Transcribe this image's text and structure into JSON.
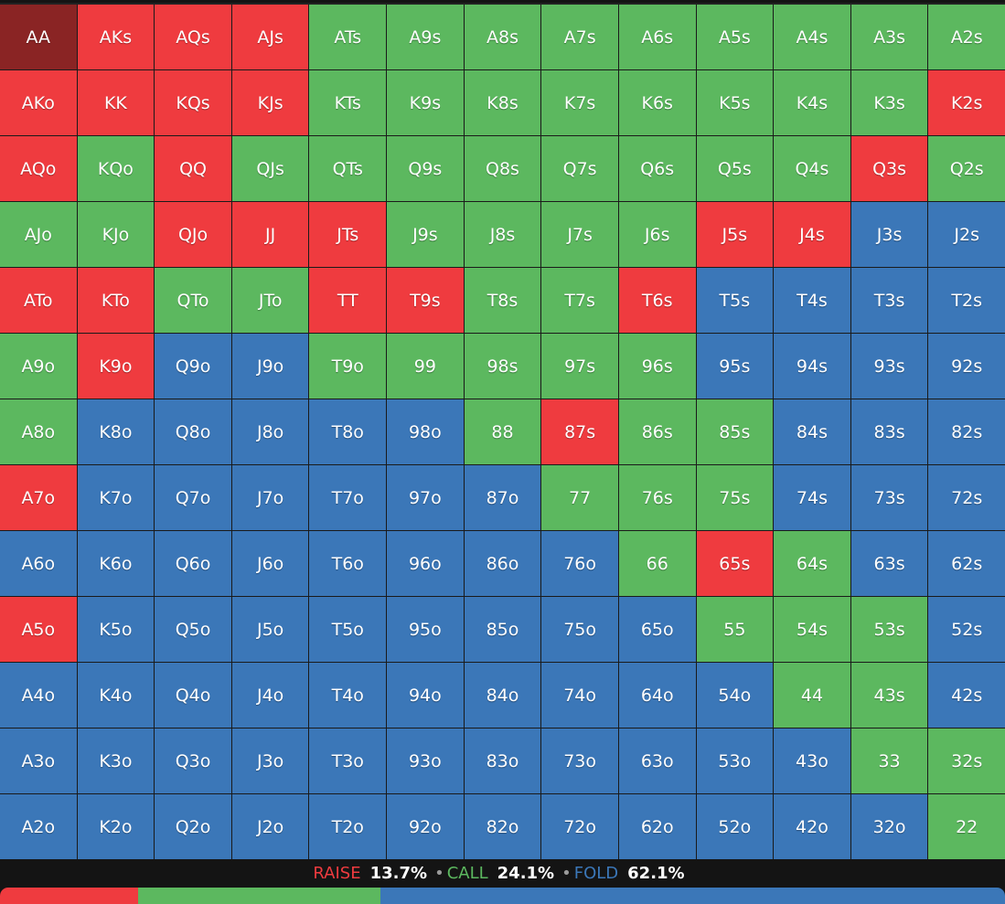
{
  "colors": {
    "raise": "#ef3b3f",
    "call": "#5cb85f",
    "fold": "#3b77b8",
    "selected": "#8a2424",
    "background": "#141414"
  },
  "grid": {
    "rows": [
      [
        [
          "AA",
          "sel"
        ],
        [
          "AKs",
          "R"
        ],
        [
          "AQs",
          "R"
        ],
        [
          "AJs",
          "R"
        ],
        [
          "ATs",
          "C"
        ],
        [
          "A9s",
          "C"
        ],
        [
          "A8s",
          "C"
        ],
        [
          "A7s",
          "C"
        ],
        [
          "A6s",
          "C"
        ],
        [
          "A5s",
          "C"
        ],
        [
          "A4s",
          "C"
        ],
        [
          "A3s",
          "C"
        ],
        [
          "A2s",
          "C"
        ]
      ],
      [
        [
          "AKo",
          "R"
        ],
        [
          "KK",
          "R"
        ],
        [
          "KQs",
          "R"
        ],
        [
          "KJs",
          "R"
        ],
        [
          "KTs",
          "C"
        ],
        [
          "K9s",
          "C"
        ],
        [
          "K8s",
          "C"
        ],
        [
          "K7s",
          "C"
        ],
        [
          "K6s",
          "C"
        ],
        [
          "K5s",
          "C"
        ],
        [
          "K4s",
          "C"
        ],
        [
          "K3s",
          "C"
        ],
        [
          "K2s",
          "R"
        ]
      ],
      [
        [
          "AQo",
          "R"
        ],
        [
          "KQo",
          "C"
        ],
        [
          "QQ",
          "R"
        ],
        [
          "QJs",
          "C"
        ],
        [
          "QTs",
          "C"
        ],
        [
          "Q9s",
          "C"
        ],
        [
          "Q8s",
          "C"
        ],
        [
          "Q7s",
          "C"
        ],
        [
          "Q6s",
          "C"
        ],
        [
          "Q5s",
          "C"
        ],
        [
          "Q4s",
          "C"
        ],
        [
          "Q3s",
          "R"
        ],
        [
          "Q2s",
          "C"
        ]
      ],
      [
        [
          "AJo",
          "C"
        ],
        [
          "KJo",
          "C"
        ],
        [
          "QJo",
          "R"
        ],
        [
          "JJ",
          "R"
        ],
        [
          "JTs",
          "R"
        ],
        [
          "J9s",
          "C"
        ],
        [
          "J8s",
          "C"
        ],
        [
          "J7s",
          "C"
        ],
        [
          "J6s",
          "C"
        ],
        [
          "J5s",
          "R"
        ],
        [
          "J4s",
          "R"
        ],
        [
          "J3s",
          "F"
        ],
        [
          "J2s",
          "F"
        ]
      ],
      [
        [
          "ATo",
          "R"
        ],
        [
          "KTo",
          "R"
        ],
        [
          "QTo",
          "C"
        ],
        [
          "JTo",
          "C"
        ],
        [
          "TT",
          "R"
        ],
        [
          "T9s",
          "R"
        ],
        [
          "T8s",
          "C"
        ],
        [
          "T7s",
          "C"
        ],
        [
          "T6s",
          "R"
        ],
        [
          "T5s",
          "F"
        ],
        [
          "T4s",
          "F"
        ],
        [
          "T3s",
          "F"
        ],
        [
          "T2s",
          "F"
        ]
      ],
      [
        [
          "A9o",
          "C"
        ],
        [
          "K9o",
          "R"
        ],
        [
          "Q9o",
          "F"
        ],
        [
          "J9o",
          "F"
        ],
        [
          "T9o",
          "C"
        ],
        [
          "99",
          "C"
        ],
        [
          "98s",
          "C"
        ],
        [
          "97s",
          "C"
        ],
        [
          "96s",
          "C"
        ],
        [
          "95s",
          "F"
        ],
        [
          "94s",
          "F"
        ],
        [
          "93s",
          "F"
        ],
        [
          "92s",
          "F"
        ]
      ],
      [
        [
          "A8o",
          "C"
        ],
        [
          "K8o",
          "F"
        ],
        [
          "Q8o",
          "F"
        ],
        [
          "J8o",
          "F"
        ],
        [
          "T8o",
          "F"
        ],
        [
          "98o",
          "F"
        ],
        [
          "88",
          "C"
        ],
        [
          "87s",
          "R"
        ],
        [
          "86s",
          "C"
        ],
        [
          "85s",
          "C"
        ],
        [
          "84s",
          "F"
        ],
        [
          "83s",
          "F"
        ],
        [
          "82s",
          "F"
        ]
      ],
      [
        [
          "A7o",
          "R"
        ],
        [
          "K7o",
          "F"
        ],
        [
          "Q7o",
          "F"
        ],
        [
          "J7o",
          "F"
        ],
        [
          "T7o",
          "F"
        ],
        [
          "97o",
          "F"
        ],
        [
          "87o",
          "F"
        ],
        [
          "77",
          "C"
        ],
        [
          "76s",
          "C"
        ],
        [
          "75s",
          "C"
        ],
        [
          "74s",
          "F"
        ],
        [
          "73s",
          "F"
        ],
        [
          "72s",
          "F"
        ]
      ],
      [
        [
          "A6o",
          "F"
        ],
        [
          "K6o",
          "F"
        ],
        [
          "Q6o",
          "F"
        ],
        [
          "J6o",
          "F"
        ],
        [
          "T6o",
          "F"
        ],
        [
          "96o",
          "F"
        ],
        [
          "86o",
          "F"
        ],
        [
          "76o",
          "F"
        ],
        [
          "66",
          "C"
        ],
        [
          "65s",
          "R"
        ],
        [
          "64s",
          "C"
        ],
        [
          "63s",
          "F"
        ],
        [
          "62s",
          "F"
        ]
      ],
      [
        [
          "A5o",
          "R"
        ],
        [
          "K5o",
          "F"
        ],
        [
          "Q5o",
          "F"
        ],
        [
          "J5o",
          "F"
        ],
        [
          "T5o",
          "F"
        ],
        [
          "95o",
          "F"
        ],
        [
          "85o",
          "F"
        ],
        [
          "75o",
          "F"
        ],
        [
          "65o",
          "F"
        ],
        [
          "55",
          "C"
        ],
        [
          "54s",
          "C"
        ],
        [
          "53s",
          "C"
        ],
        [
          "52s",
          "F"
        ]
      ],
      [
        [
          "A4o",
          "F"
        ],
        [
          "K4o",
          "F"
        ],
        [
          "Q4o",
          "F"
        ],
        [
          "J4o",
          "F"
        ],
        [
          "T4o",
          "F"
        ],
        [
          "94o",
          "F"
        ],
        [
          "84o",
          "F"
        ],
        [
          "74o",
          "F"
        ],
        [
          "64o",
          "F"
        ],
        [
          "54o",
          "F"
        ],
        [
          "44",
          "C"
        ],
        [
          "43s",
          "C"
        ],
        [
          "42s",
          "F"
        ]
      ],
      [
        [
          "A3o",
          "F"
        ],
        [
          "K3o",
          "F"
        ],
        [
          "Q3o",
          "F"
        ],
        [
          "J3o",
          "F"
        ],
        [
          "T3o",
          "F"
        ],
        [
          "93o",
          "F"
        ],
        [
          "83o",
          "F"
        ],
        [
          "73o",
          "F"
        ],
        [
          "63o",
          "F"
        ],
        [
          "53o",
          "F"
        ],
        [
          "43o",
          "F"
        ],
        [
          "33",
          "C"
        ],
        [
          "32s",
          "C"
        ]
      ],
      [
        [
          "A2o",
          "F"
        ],
        [
          "K2o",
          "F"
        ],
        [
          "Q2o",
          "F"
        ],
        [
          "J2o",
          "F"
        ],
        [
          "T2o",
          "F"
        ],
        [
          "92o",
          "F"
        ],
        [
          "82o",
          "F"
        ],
        [
          "72o",
          "F"
        ],
        [
          "62o",
          "F"
        ],
        [
          "52o",
          "F"
        ],
        [
          "42o",
          "F"
        ],
        [
          "32o",
          "F"
        ],
        [
          "22",
          "C"
        ]
      ]
    ]
  },
  "summary": {
    "raise_label": "RAISE",
    "raise_value": "13.7%",
    "call_label": "CALL",
    "call_value": "24.1%",
    "fold_label": "FOLD",
    "fold_value": "62.1%",
    "separator": "•"
  },
  "frequency_bar": {
    "raise": 13.7,
    "call": 24.1,
    "fold": 62.1
  }
}
